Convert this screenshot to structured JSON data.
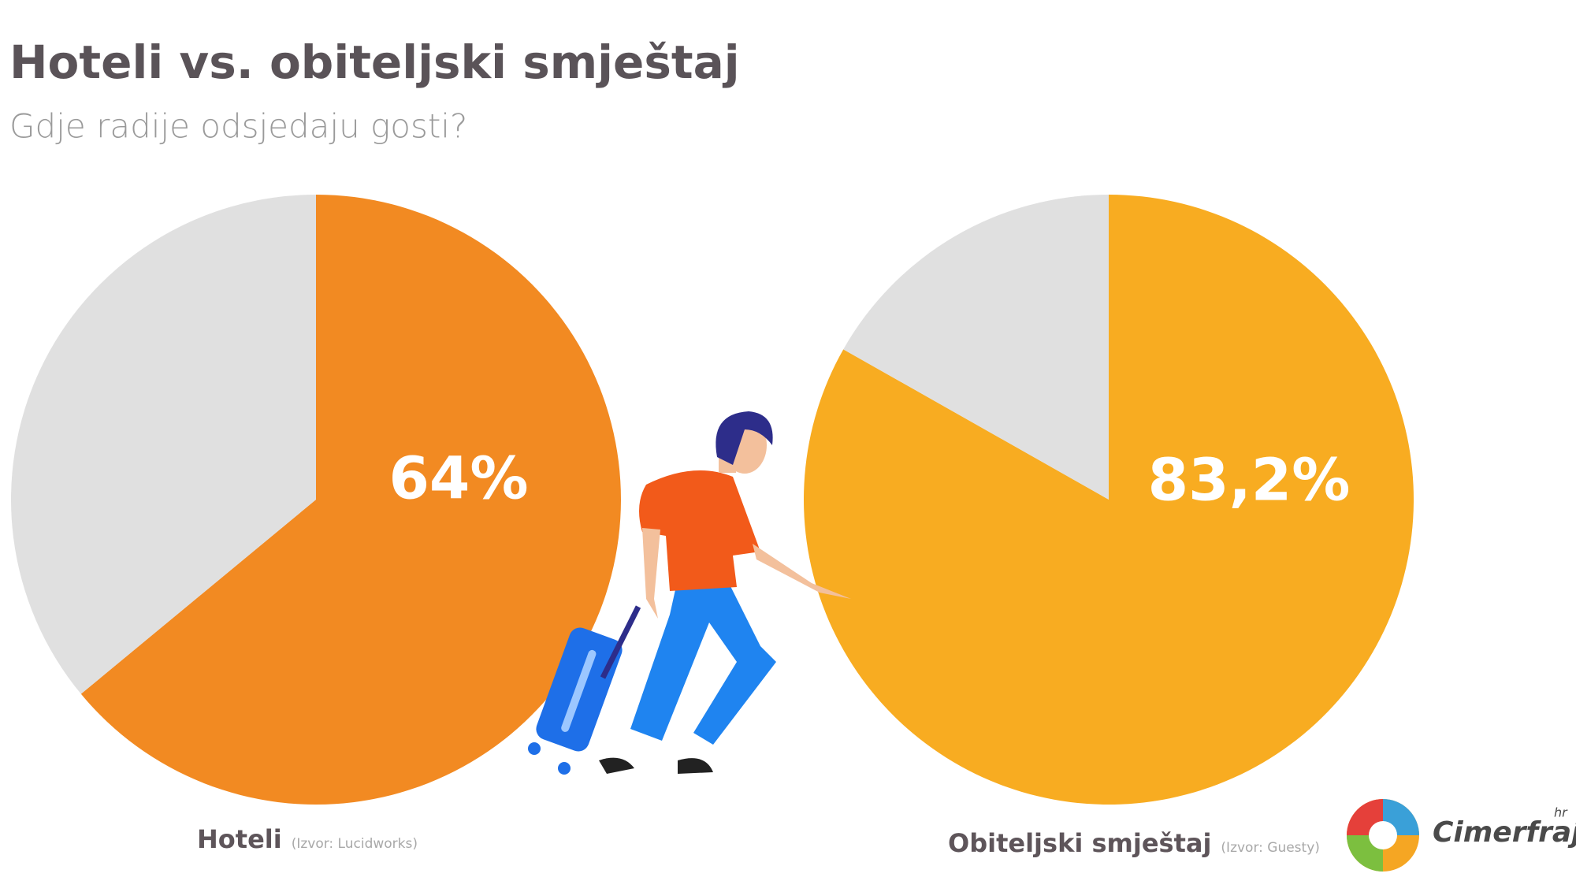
{
  "header": {
    "title": "Hoteli vs. obiteljski smještaj",
    "subtitle": "Gdje radije odsjedaju gosti?"
  },
  "chart_data": [
    {
      "type": "pie",
      "title": "Hoteli",
      "source": "(Izvor: Lucidworks)",
      "values": [
        64,
        36
      ],
      "value_labels": [
        "64%",
        null
      ],
      "colors": [
        "#f28a22",
        "#e0e0e0"
      ]
    },
    {
      "type": "pie",
      "title": "Obiteljski smještaj",
      "source": "(Izvor: Guesty)",
      "values": [
        83.2,
        16.8
      ],
      "value_labels": [
        "83,2%",
        null
      ],
      "colors": [
        "#f8ac21",
        "#e0e0e0"
      ]
    }
  ],
  "logo": {
    "text": "Cimerfraj",
    "suffix": "hr"
  }
}
